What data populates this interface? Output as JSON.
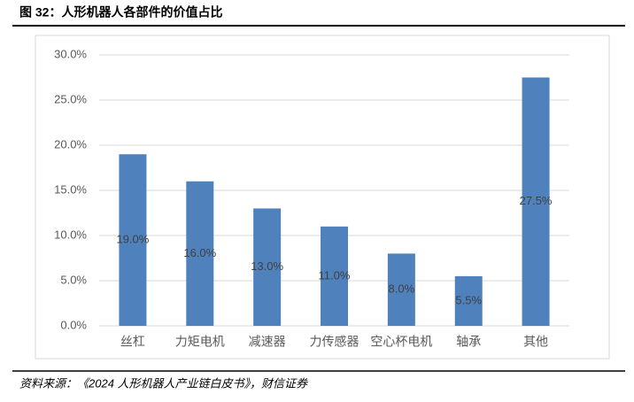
{
  "chart_data": {
    "type": "bar",
    "title": "图 32：人形机器人各部件的价值占比",
    "categories": [
      "丝杠",
      "力矩电机",
      "减速器",
      "力传感器",
      "空心杯电机",
      "轴承",
      "其他"
    ],
    "values": [
      19,
      16,
      13,
      11,
      8,
      5.5,
      27.5
    ],
    "value_labels": [
      "19.0%",
      "16.0%",
      "13.0%",
      "11.0%",
      "8.0%",
      "5.5%",
      "27.5%"
    ],
    "color": "#4f81bd",
    "ylim": [
      0,
      30
    ],
    "yticks": [
      {
        "value": 0,
        "label": "0.0%"
      },
      {
        "value": 5,
        "label": "5.0%"
      },
      {
        "value": 10,
        "label": "10.0%"
      },
      {
        "value": 15,
        "label": "15.0%"
      },
      {
        "value": 20,
        "label": "20.0%"
      },
      {
        "value": 25,
        "label": "25.0%"
      },
      {
        "value": 30,
        "label": "30.0%"
      }
    ],
    "grid": true,
    "source": "资料来源：《2024 人形机器人产业链白皮书》，财信证券"
  }
}
